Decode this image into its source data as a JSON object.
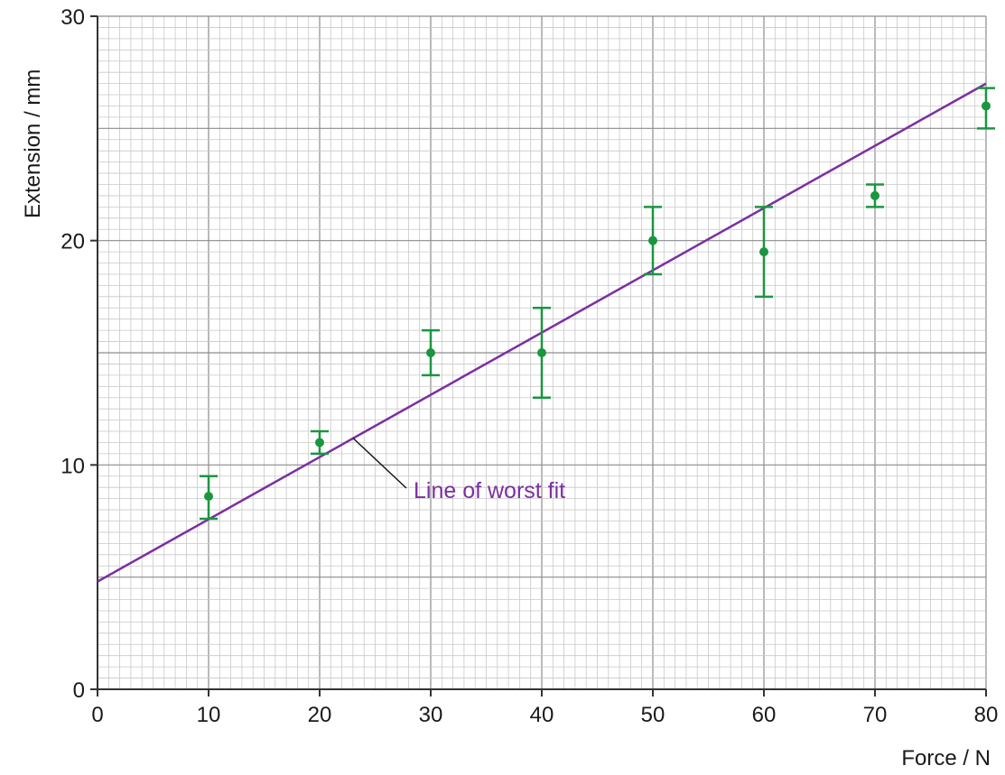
{
  "chart_data": {
    "type": "scatter",
    "xlabel": "Force / N",
    "ylabel": "Extension / mm",
    "xlim": [
      0,
      80
    ],
    "ylim": [
      0,
      30
    ],
    "x_ticks": [
      "0",
      "10",
      "20",
      "30",
      "40",
      "50",
      "60",
      "70",
      "80"
    ],
    "y_ticks": [
      "0",
      "10",
      "20",
      "30"
    ],
    "grid": true,
    "grid_minor_step": 1,
    "grid_major_step_x": 10,
    "grid_major_step_y": 5,
    "series": [
      {
        "kind": "points_with_error_bars",
        "color": "#1a9641",
        "points": [
          {
            "x": 10,
            "y": 8.6,
            "err_low": 7.6,
            "err_high": 9.5
          },
          {
            "x": 20,
            "y": 11.0,
            "err_low": 10.5,
            "err_high": 11.5
          },
          {
            "x": 30,
            "y": 15.0,
            "err_low": 14.0,
            "err_high": 16.0
          },
          {
            "x": 40,
            "y": 15.0,
            "err_low": 13.0,
            "err_high": 17.0
          },
          {
            "x": 50,
            "y": 20.0,
            "err_low": 18.5,
            "err_high": 21.5
          },
          {
            "x": 60,
            "y": 19.5,
            "err_low": 17.5,
            "err_high": 21.5
          },
          {
            "x": 70,
            "y": 22.0,
            "err_low": 21.5,
            "err_high": 22.5
          },
          {
            "x": 80,
            "y": 26.0,
            "err_low": 25.0,
            "err_high": 26.8
          }
        ]
      },
      {
        "kind": "line",
        "name": "Line of worst fit",
        "color": "#7b2fa0",
        "points": [
          {
            "x": 0,
            "y": 4.8
          },
          {
            "x": 80,
            "y": 27.0
          }
        ]
      }
    ],
    "annotations": [
      {
        "text": "Line of worst fit",
        "color": "#7b2fa0",
        "points_to_x": 23,
        "points_to_y": 11.2
      }
    ]
  }
}
